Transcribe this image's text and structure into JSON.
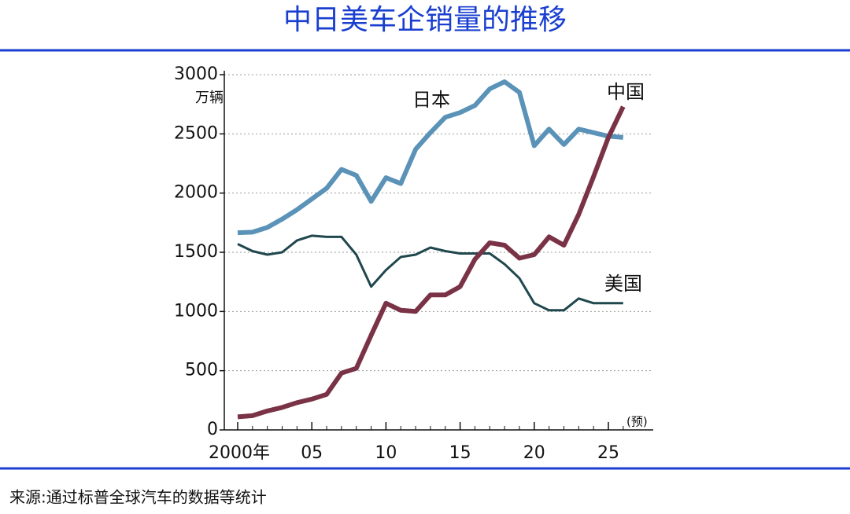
{
  "chart_data": {
    "type": "line",
    "title": "中日美车企销量的推移",
    "unit": "万辆",
    "annotation": "(预)",
    "source": "来源:通过标普全球汽车的数据等统计",
    "x": [
      2000,
      2001,
      2002,
      2003,
      2004,
      2005,
      2006,
      2007,
      2008,
      2009,
      2010,
      2011,
      2012,
      2013,
      2014,
      2015,
      2016,
      2017,
      2018,
      2019,
      2020,
      2021,
      2022,
      2023,
      2024,
      2025,
      2026
    ],
    "series": [
      {
        "name": "日本",
        "color": "#5b93b8",
        "values": [
          1665,
          1670,
          1710,
          1780,
          1860,
          1950,
          2040,
          2200,
          2150,
          1930,
          2130,
          2080,
          2370,
          2510,
          2640,
          2680,
          2740,
          2880,
          2940,
          2850,
          2400,
          2540,
          2410,
          2540,
          2510,
          2480,
          2470
        ]
      },
      {
        "name": "美国",
        "color": "#1f474d",
        "values": [
          1570,
          1510,
          1480,
          1500,
          1600,
          1640,
          1630,
          1630,
          1480,
          1210,
          1350,
          1460,
          1480,
          1540,
          1510,
          1490,
          1490,
          1490,
          1400,
          1280,
          1070,
          1010,
          1010,
          1110,
          1070,
          1070,
          1070
        ]
      },
      {
        "name": "中国",
        "color": "#7a3346",
        "values": [
          110,
          120,
          160,
          190,
          230,
          260,
          300,
          480,
          520,
          800,
          1070,
          1010,
          1000,
          1140,
          1140,
          1210,
          1440,
          1580,
          1560,
          1450,
          1480,
          1630,
          1560,
          1820,
          2140,
          2470,
          2730
        ]
      }
    ],
    "xlim": [
      1999,
      2027
    ],
    "xticks": [
      {
        "value": 2000,
        "label": "2000年"
      },
      {
        "value": 2005,
        "label": "05"
      },
      {
        "value": 2010,
        "label": "10"
      },
      {
        "value": 2015,
        "label": "15"
      },
      {
        "value": 2020,
        "label": "20"
      },
      {
        "value": 2025,
        "label": "25"
      }
    ],
    "ylim": [
      0,
      3000
    ],
    "yticks": [
      0,
      500,
      1000,
      1500,
      2000,
      2500,
      3000
    ],
    "grid": true
  }
}
